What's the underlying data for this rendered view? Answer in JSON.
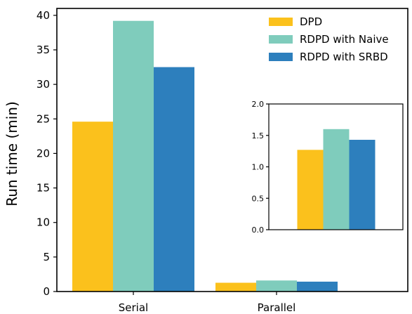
{
  "chart_data": [
    {
      "type": "bar",
      "categories": [
        "Serial",
        "Parallel"
      ],
      "series": [
        {
          "name": "DPD",
          "values": [
            24.6,
            1.27
          ],
          "color": "#fbc11c"
        },
        {
          "name": "RDPD with Naive",
          "values": [
            39.2,
            1.6
          ],
          "color": "#7fccbc"
        },
        {
          "name": "RDPD with SRBD",
          "values": [
            32.5,
            1.43
          ],
          "color": "#2d7fbd"
        }
      ],
      "ylabel": "Run time (min)",
      "xlabel": "",
      "ylim": [
        0,
        41
      ],
      "yticks": [
        0,
        5,
        10,
        15,
        20,
        25,
        30,
        35,
        40
      ],
      "legend_placement": "top-right",
      "grid": false
    },
    {
      "type": "bar",
      "role": "inset",
      "categories": [
        "Parallel"
      ],
      "series": [
        {
          "name": "DPD",
          "values": [
            1.27
          ],
          "color": "#fbc11c"
        },
        {
          "name": "RDPD with Naive",
          "values": [
            1.6
          ],
          "color": "#7fccbc"
        },
        {
          "name": "RDPD with SRBD",
          "values": [
            1.43
          ],
          "color": "#2d7fbd"
        }
      ],
      "ylim": [
        0,
        2.0
      ],
      "yticks": [
        "0.0",
        "0.5",
        "1.0",
        "1.5",
        "2.0"
      ],
      "grid": false
    }
  ]
}
